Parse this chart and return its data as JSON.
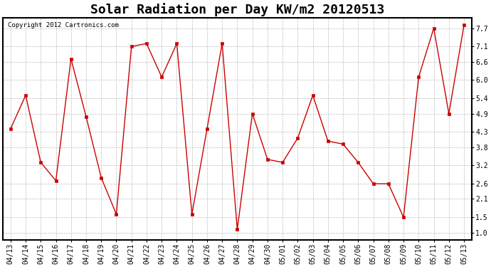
{
  "title": "Solar Radiation per Day KW/m2 20120513",
  "copyright": "Copyright 2012 Cartronics.com",
  "dates": [
    "04/13",
    "04/14",
    "04/15",
    "04/16",
    "04/17",
    "04/18",
    "04/19",
    "04/20",
    "04/21",
    "04/22",
    "04/23",
    "04/24",
    "04/25",
    "04/26",
    "04/27",
    "04/28",
    "04/29",
    "04/30",
    "05/01",
    "05/02",
    "05/03",
    "05/04",
    "05/05",
    "05/06",
    "05/07",
    "05/08",
    "05/09",
    "05/10",
    "05/11",
    "05/12",
    "05/13"
  ],
  "values": [
    4.4,
    5.5,
    3.3,
    2.7,
    6.7,
    4.8,
    2.8,
    1.6,
    7.1,
    7.2,
    6.1,
    7.2,
    1.6,
    4.4,
    7.2,
    1.1,
    4.9,
    3.4,
    3.3,
    4.1,
    5.5,
    4.0,
    3.9,
    3.3,
    2.6,
    2.6,
    1.5,
    6.1,
    7.7,
    4.9,
    7.8
  ],
  "line_color": "#cc0000",
  "marker_size": 3,
  "bg_color": "#ffffff",
  "grid_color": "#bbbbbb",
  "yticks": [
    1.0,
    1.5,
    2.1,
    2.6,
    3.2,
    3.8,
    4.3,
    4.9,
    5.4,
    6.0,
    6.6,
    7.1,
    7.7
  ],
  "title_fontsize": 13,
  "copyright_fontsize": 6.5,
  "tick_fontsize": 7,
  "ylim_min": 0.75,
  "ylim_max": 8.05
}
